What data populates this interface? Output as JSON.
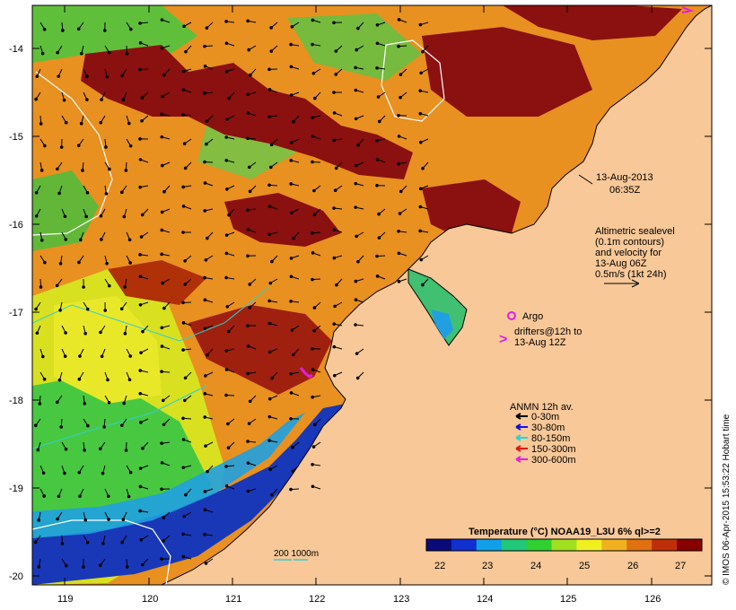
{
  "map": {
    "date_line1": "13-Aug-2013",
    "date_line2": "06:35Z",
    "altimetry_lines": [
      "Altimetric sealevel",
      "(0.1m contours)",
      "and velocity for",
      "13-Aug 06Z",
      "0.5m/s (1kt 24h)"
    ],
    "argo_label": "Argo",
    "drifter_lines": [
      "drifters@12h to",
      "13-Aug 12Z"
    ],
    "legend_title": "ANMN 12h av.",
    "legend_items": [
      {
        "label": "0-30m",
        "color": "#000000"
      },
      {
        "label": "30-80m",
        "color": "#1010e0"
      },
      {
        "label": "80-150m",
        "color": "#20d8d8"
      },
      {
        "label": "150-300m",
        "color": "#e01818"
      },
      {
        "label": "300-600m",
        "color": "#e020e0"
      }
    ],
    "depth_label": "200  1000m",
    "colorbar_title": "Temperature (°C) NOAA19_L3U 6% ql>=2",
    "colorbar_ticks": [
      "22",
      "23",
      "24",
      "25",
      "26",
      "27"
    ],
    "colorbar_colors": [
      "#0a0a78",
      "#1030d0",
      "#10a0e8",
      "#20c878",
      "#30d030",
      "#a0e020",
      "#f0f020",
      "#f0b020",
      "#e07010",
      "#c03008",
      "#880000"
    ],
    "credit": "© IMOS 06-Apr-2015 15:53:22 Hobart time",
    "lat_ticks": [
      "-14",
      "-15",
      "-16",
      "-17",
      "-18",
      "-19",
      "-20"
    ],
    "lon_ticks": [
      "119",
      "120",
      "121",
      "122",
      "123",
      "124",
      "125",
      "126"
    ],
    "land_color": "#f8c898",
    "warm_color": "#8b1010",
    "cool_color": "#1838b8"
  }
}
